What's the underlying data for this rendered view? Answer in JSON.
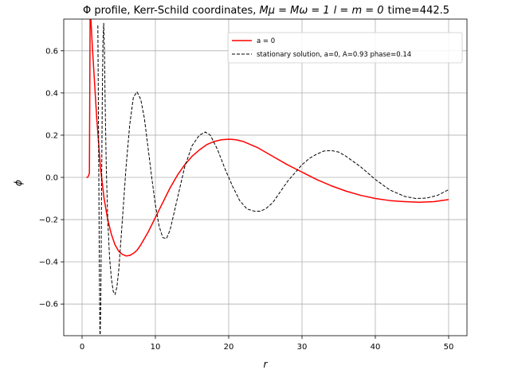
{
  "chart_data": {
    "type": "line",
    "title": "Φ profile, Kerr-Schild coordinates, Mμ = Mω = 1 l = m = 0 time=442.5",
    "title_parts": {
      "prefix": "Φ profile, Kerr-Schild coordinates, ",
      "math1": "Mμ = Mω = 1",
      "math2": "l = m = 0",
      "suffix": "time=442.5"
    },
    "xlabel": "r",
    "ylabel": "ϕ",
    "xlim": [
      -2.5,
      52.5
    ],
    "ylim": [
      -0.75,
      0.75
    ],
    "x_ticks": [
      0,
      10,
      20,
      30,
      40,
      50
    ],
    "x_tick_labels": [
      "0",
      "10",
      "20",
      "30",
      "40",
      "50"
    ],
    "y_ticks": [
      -0.6,
      -0.4,
      -0.2,
      0.0,
      0.2,
      0.4,
      0.6
    ],
    "y_tick_labels": [
      "−0.6",
      "−0.4",
      "−0.2",
      "0.0",
      "0.2",
      "0.4",
      "0.6"
    ],
    "grid": true,
    "legend_position": "top-right",
    "series": [
      {
        "name": "a = 0",
        "color": "#ff0000",
        "style": "solid",
        "x": [
          0.6,
          0.75,
          0.9,
          1.0,
          1.05,
          1.1,
          1.2,
          1.4,
          1.7,
          2.0,
          2.5,
          3.0,
          3.5,
          4.0,
          4.5,
          5.0,
          5.5,
          6.0,
          6.5,
          7.0,
          7.5,
          8.0,
          9.0,
          10.0,
          11.0,
          12.0,
          13.0,
          14.0,
          15.0,
          16.0,
          17.0,
          18.0,
          19.0,
          20.0,
          20.5,
          21.0,
          22.0,
          24.0,
          26.0,
          28.0,
          30.0,
          32.0,
          34.0,
          36.0,
          38.0,
          40.0,
          42.0,
          44.0,
          46.0,
          48.0,
          50.0
        ],
        "y": [
          0.0,
          0.0,
          0.01,
          0.02,
          0.4,
          0.8,
          0.75,
          0.62,
          0.45,
          0.28,
          0.05,
          -0.1,
          -0.2,
          -0.27,
          -0.32,
          -0.35,
          -0.365,
          -0.372,
          -0.37,
          -0.36,
          -0.345,
          -0.32,
          -0.26,
          -0.19,
          -0.12,
          -0.05,
          0.01,
          0.06,
          0.1,
          0.13,
          0.155,
          0.17,
          0.178,
          0.181,
          0.18,
          0.178,
          0.17,
          0.14,
          0.1,
          0.06,
          0.025,
          -0.01,
          -0.04,
          -0.065,
          -0.085,
          -0.1,
          -0.11,
          -0.115,
          -0.118,
          -0.115,
          -0.105
        ]
      },
      {
        "name": "stationary solution, a=0, A=0.93 phase=0.14",
        "color": "#000000",
        "style": "dashed",
        "x": [
          2.15,
          2.25,
          2.35,
          2.45,
          2.55,
          2.65,
          2.75,
          2.85,
          2.95,
          3.05,
          3.15,
          3.3,
          3.5,
          3.75,
          4.0,
          4.25,
          4.5,
          4.75,
          5.0,
          5.5,
          6.0,
          6.5,
          7.0,
          7.5,
          8.0,
          8.5,
          9.0,
          9.5,
          10.0,
          10.5,
          11.0,
          11.5,
          12.0,
          13.0,
          14.0,
          15.0,
          16.0,
          16.8,
          17.5,
          18.5,
          19.5,
          20.5,
          21.5,
          22.5,
          23.5,
          24.3,
          25.0,
          26.0,
          27.0,
          28.0,
          29.0,
          30.0,
          31.0,
          32.0,
          33.0,
          34.0,
          35.0,
          36.0,
          38.0,
          40.0,
          42.0,
          44.0,
          45.5,
          47.0,
          48.5,
          50.0
        ],
        "y": [
          0.72,
          0.2,
          -0.4,
          -0.78,
          -0.6,
          -0.1,
          0.35,
          0.65,
          0.73,
          0.6,
          0.35,
          0.05,
          -0.2,
          -0.38,
          -0.48,
          -0.54,
          -0.555,
          -0.52,
          -0.44,
          -0.2,
          0.05,
          0.25,
          0.38,
          0.405,
          0.37,
          0.28,
          0.14,
          0.0,
          -0.13,
          -0.23,
          -0.285,
          -0.29,
          -0.25,
          -0.1,
          0.05,
          0.15,
          0.2,
          0.215,
          0.2,
          0.13,
          0.04,
          -0.04,
          -0.11,
          -0.15,
          -0.16,
          -0.16,
          -0.15,
          -0.12,
          -0.07,
          -0.02,
          0.02,
          0.06,
          0.09,
          0.11,
          0.125,
          0.127,
          0.12,
          0.1,
          0.05,
          -0.01,
          -0.06,
          -0.09,
          -0.1,
          -0.098,
          -0.085,
          -0.058
        ]
      }
    ]
  }
}
